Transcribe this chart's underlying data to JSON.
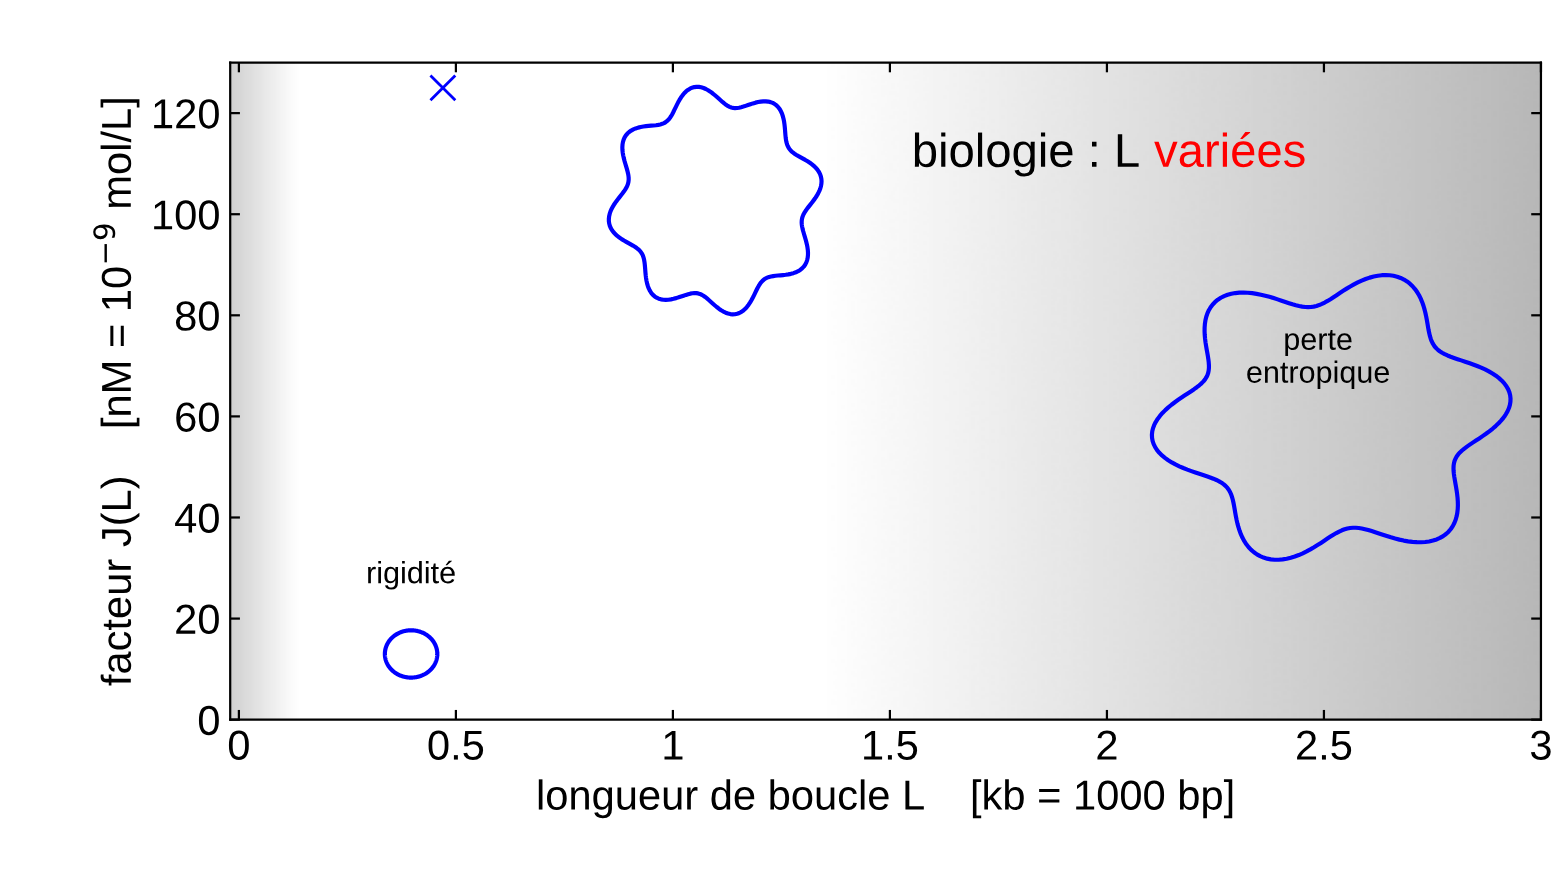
{
  "chart_data": {
    "type": "scatter",
    "xlabel": "longueur de boucle L    [kb = 1000 bp]",
    "ylabel": "facteur J(L)    [nM = 10$^{−9}$ mol/L]",
    "x": [
      0.47
    ],
    "series": [
      {
        "color": "#0000ff",
        "values": [
          125
        ]
      }
    ],
    "marker": "cross",
    "grid": false,
    "legend": false,
    "xlim": [
      -0.02,
      3
    ],
    "ylim": [
      0,
      130
    ],
    "xticks": [
      0,
      0.5,
      1,
      1.5,
      2,
      2.5,
      3
    ],
    "yticks": [
      0,
      20,
      40,
      60,
      80,
      100,
      120
    ],
    "annotations": [
      "biologie : L",
      "variées",
      "rigidité",
      "perte\nentropique"
    ]
  }
}
